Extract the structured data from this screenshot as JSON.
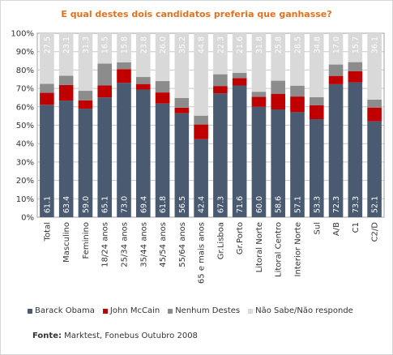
{
  "chart_data": {
    "type": "bar",
    "stacked": true,
    "title": "E qual destes dois candidatos preferia que ganhasse?",
    "ylim": [
      0,
      100
    ],
    "yticks": [
      "0%",
      "10%",
      "20%",
      "30%",
      "40%",
      "50%",
      "60%",
      "70%",
      "80%",
      "90%",
      "100%"
    ],
    "categories": [
      "Total",
      "Masculino",
      "Feminino",
      "18/24 anos",
      "25/34 anos",
      "35/44 anos",
      "45/54 anos",
      "55/64 anos",
      "65 e mais anos",
      "Gr.Lisboa",
      "Gr.Porto",
      "Litoral Norte",
      "Litoral Centro",
      "Interior Norte",
      "Sul",
      "A/B",
      "C1",
      "C2/D"
    ],
    "series": [
      {
        "name": "Barack Obama",
        "color": "#4a5a70",
        "values": [
          61.1,
          63.4,
          59.0,
          65.1,
          73.0,
          69.4,
          61.8,
          56.5,
          42.4,
          67.3,
          71.6,
          60.0,
          58.6,
          57.1,
          53.3,
          72.3,
          73.3,
          52.1
        ]
      },
      {
        "name": "John McCain",
        "color": "#c00000",
        "values": [
          6.5,
          8.5,
          4.5,
          6.5,
          7.5,
          3.0,
          6.0,
          3.0,
          8.0,
          4.0,
          4.0,
          5.5,
          8.5,
          8.5,
          7.5,
          4.5,
          6.0,
          7.5
        ]
      },
      {
        "name": "Nenhum Destes",
        "color": "#8c8c8c",
        "values": [
          4.9,
          5.0,
          5.2,
          11.9,
          3.7,
          3.8,
          6.2,
          5.3,
          4.8,
          6.4,
          2.8,
          2.7,
          7.1,
          5.9,
          4.4,
          6.2,
          5.0,
          4.3
        ]
      },
      {
        "name": "Não Sabe/Não responde",
        "color": "#d9d9d9",
        "values": [
          27.5,
          23.1,
          31.3,
          16.5,
          15.8,
          23.8,
          26.0,
          35.2,
          44.8,
          22.3,
          21.6,
          31.8,
          25.8,
          28.5,
          34.8,
          17.0,
          15.7,
          36.1
        ]
      }
    ],
    "labeled_series": [
      "Barack Obama",
      "Não Sabe/Não responde"
    ],
    "grid": true,
    "legend": "bottom"
  },
  "source": {
    "label": "Fonte:",
    "text": "Marktest, Fonebus Outubro 2008"
  }
}
